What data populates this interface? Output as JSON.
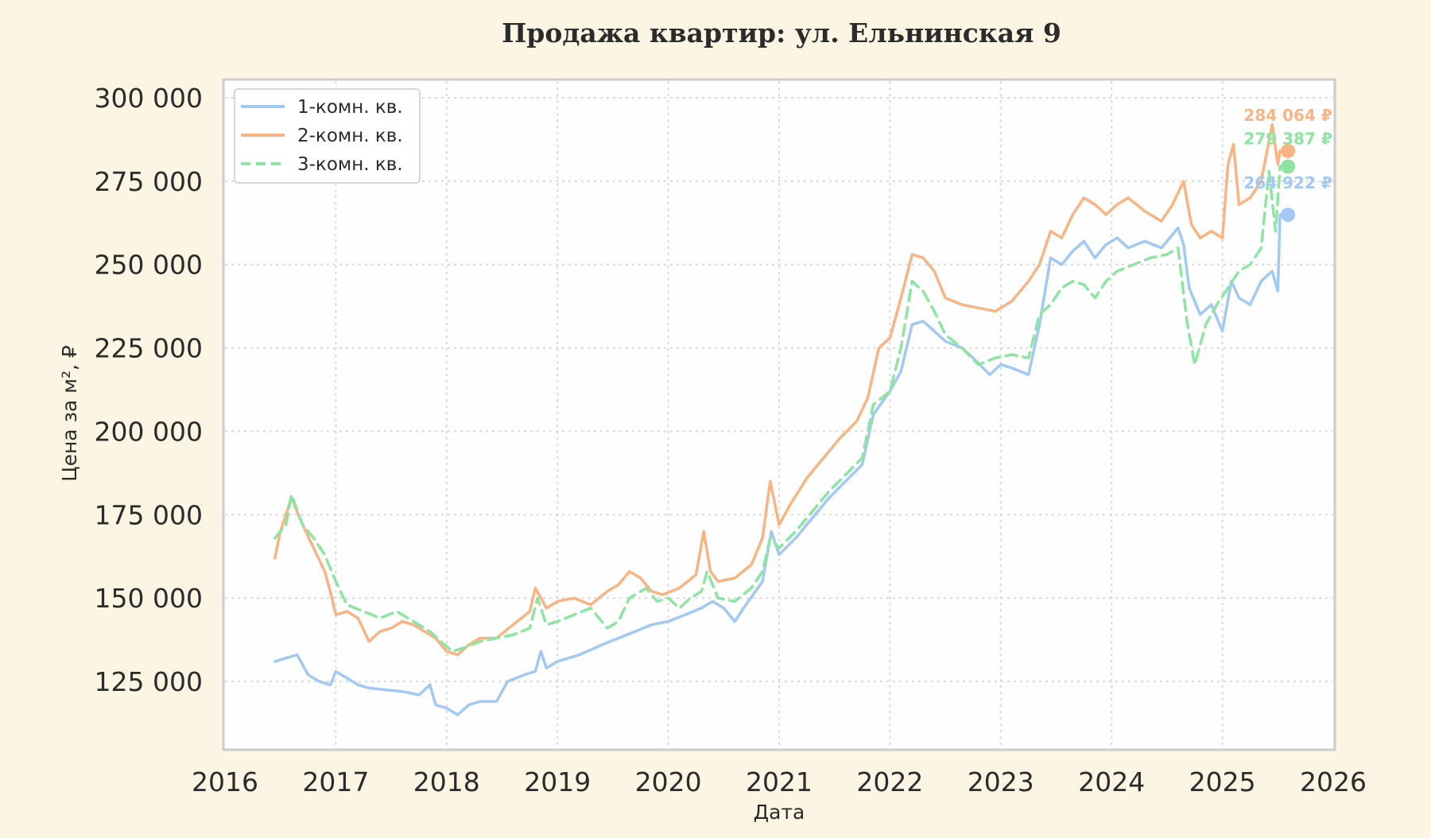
{
  "chart_data": {
    "type": "line",
    "title": "Продажа квартир: ул. Ельнинская 9",
    "xlabel": "Дата",
    "ylabel": "Цена за м², ₽",
    "xlim": [
      2016,
      2026
    ],
    "ylim": [
      105000,
      305000
    ],
    "x_ticks": [
      "2016",
      "2017",
      "2018",
      "2019",
      "2020",
      "2021",
      "2022",
      "2023",
      "2024",
      "2025",
      "2026"
    ],
    "y_ticks": [
      "125 000",
      "150 000",
      "175 000",
      "200 000",
      "225 000",
      "250 000",
      "275 000",
      "300 000"
    ],
    "y_tick_values": [
      125000,
      150000,
      175000,
      200000,
      225000,
      250000,
      275000,
      300000
    ],
    "grid": true,
    "legend_position": "top-left",
    "series": [
      {
        "name": "1-комн. кв.",
        "color": "#a1c9f4",
        "dash": "solid",
        "end_value": 264922,
        "end_label": "264 922 ₽",
        "points": [
          [
            2016.45,
            131000
          ],
          [
            2016.55,
            132000
          ],
          [
            2016.65,
            133000
          ],
          [
            2016.75,
            127000
          ],
          [
            2016.85,
            125000
          ],
          [
            2016.95,
            124000
          ],
          [
            2017.0,
            128000
          ],
          [
            2017.1,
            126000
          ],
          [
            2017.2,
            124000
          ],
          [
            2017.3,
            123000
          ],
          [
            2017.45,
            122500
          ],
          [
            2017.6,
            122000
          ],
          [
            2017.75,
            121000
          ],
          [
            2017.85,
            124000
          ],
          [
            2017.9,
            118000
          ],
          [
            2018.0,
            117000
          ],
          [
            2018.1,
            115000
          ],
          [
            2018.2,
            118000
          ],
          [
            2018.3,
            119000
          ],
          [
            2018.45,
            119000
          ],
          [
            2018.55,
            125000
          ],
          [
            2018.7,
            127000
          ],
          [
            2018.8,
            128000
          ],
          [
            2018.85,
            134000
          ],
          [
            2018.9,
            129000
          ],
          [
            2019.0,
            131000
          ],
          [
            2019.2,
            133000
          ],
          [
            2019.4,
            136000
          ],
          [
            2019.55,
            138000
          ],
          [
            2019.7,
            140000
          ],
          [
            2019.85,
            142000
          ],
          [
            2020.0,
            143000
          ],
          [
            2020.15,
            145000
          ],
          [
            2020.3,
            147000
          ],
          [
            2020.4,
            149000
          ],
          [
            2020.5,
            147000
          ],
          [
            2020.6,
            143000
          ],
          [
            2020.7,
            148000
          ],
          [
            2020.85,
            155000
          ],
          [
            2020.93,
            170000
          ],
          [
            2021.0,
            163000
          ],
          [
            2021.15,
            168000
          ],
          [
            2021.3,
            174000
          ],
          [
            2021.45,
            180000
          ],
          [
            2021.6,
            185000
          ],
          [
            2021.75,
            190000
          ],
          [
            2021.85,
            205000
          ],
          [
            2022.0,
            212000
          ],
          [
            2022.1,
            218000
          ],
          [
            2022.2,
            232000
          ],
          [
            2022.3,
            233000
          ],
          [
            2022.4,
            230000
          ],
          [
            2022.5,
            227000
          ],
          [
            2022.65,
            225000
          ],
          [
            2022.75,
            222000
          ],
          [
            2022.9,
            217000
          ],
          [
            2023.0,
            220000
          ],
          [
            2023.1,
            219000
          ],
          [
            2023.25,
            217000
          ],
          [
            2023.35,
            232000
          ],
          [
            2023.45,
            252000
          ],
          [
            2023.55,
            250000
          ],
          [
            2023.65,
            254000
          ],
          [
            2023.75,
            257000
          ],
          [
            2023.85,
            252000
          ],
          [
            2023.95,
            256000
          ],
          [
            2024.05,
            258000
          ],
          [
            2024.15,
            255000
          ],
          [
            2024.3,
            257000
          ],
          [
            2024.45,
            255000
          ],
          [
            2024.55,
            259000
          ],
          [
            2024.6,
            261000
          ],
          [
            2024.65,
            256000
          ],
          [
            2024.7,
            243000
          ],
          [
            2024.8,
            235000
          ],
          [
            2024.9,
            238000
          ],
          [
            2025.0,
            230000
          ],
          [
            2025.08,
            245000
          ],
          [
            2025.15,
            240000
          ],
          [
            2025.25,
            238000
          ],
          [
            2025.35,
            245000
          ],
          [
            2025.45,
            248000
          ],
          [
            2025.5,
            242000
          ],
          [
            2025.52,
            264922
          ]
        ]
      },
      {
        "name": "2-комн. кв.",
        "color": "#f9b483",
        "dash": "solid",
        "end_value": 284064,
        "end_label": "284 064 ₽",
        "points": [
          [
            2016.45,
            162000
          ],
          [
            2016.5,
            170000
          ],
          [
            2016.6,
            180000
          ],
          [
            2016.7,
            172000
          ],
          [
            2016.8,
            165000
          ],
          [
            2016.9,
            158000
          ],
          [
            2016.95,
            152000
          ],
          [
            2017.0,
            145000
          ],
          [
            2017.1,
            146000
          ],
          [
            2017.2,
            144000
          ],
          [
            2017.3,
            137000
          ],
          [
            2017.4,
            140000
          ],
          [
            2017.5,
            141000
          ],
          [
            2017.6,
            143000
          ],
          [
            2017.7,
            142000
          ],
          [
            2017.8,
            140000
          ],
          [
            2017.9,
            138000
          ],
          [
            2018.0,
            134000
          ],
          [
            2018.1,
            133000
          ],
          [
            2018.2,
            136000
          ],
          [
            2018.3,
            138000
          ],
          [
            2018.45,
            138000
          ],
          [
            2018.6,
            142000
          ],
          [
            2018.75,
            146000
          ],
          [
            2018.8,
            153000
          ],
          [
            2018.9,
            147000
          ],
          [
            2019.0,
            149000
          ],
          [
            2019.15,
            150000
          ],
          [
            2019.3,
            148000
          ],
          [
            2019.45,
            152000
          ],
          [
            2019.55,
            154000
          ],
          [
            2019.65,
            158000
          ],
          [
            2019.75,
            156000
          ],
          [
            2019.85,
            152000
          ],
          [
            2019.95,
            151000
          ],
          [
            2020.1,
            153000
          ],
          [
            2020.25,
            157000
          ],
          [
            2020.32,
            170000
          ],
          [
            2020.38,
            158000
          ],
          [
            2020.45,
            155000
          ],
          [
            2020.6,
            156000
          ],
          [
            2020.75,
            160000
          ],
          [
            2020.85,
            168000
          ],
          [
            2020.92,
            185000
          ],
          [
            2021.0,
            172000
          ],
          [
            2021.1,
            178000
          ],
          [
            2021.25,
            186000
          ],
          [
            2021.4,
            192000
          ],
          [
            2021.55,
            198000
          ],
          [
            2021.7,
            203000
          ],
          [
            2021.8,
            210000
          ],
          [
            2021.9,
            225000
          ],
          [
            2022.0,
            228000
          ],
          [
            2022.1,
            240000
          ],
          [
            2022.2,
            253000
          ],
          [
            2022.3,
            252000
          ],
          [
            2022.4,
            248000
          ],
          [
            2022.5,
            240000
          ],
          [
            2022.65,
            238000
          ],
          [
            2022.8,
            237000
          ],
          [
            2022.95,
            236000
          ],
          [
            2023.1,
            239000
          ],
          [
            2023.25,
            245000
          ],
          [
            2023.35,
            250000
          ],
          [
            2023.45,
            260000
          ],
          [
            2023.55,
            258000
          ],
          [
            2023.65,
            265000
          ],
          [
            2023.75,
            270000
          ],
          [
            2023.85,
            268000
          ],
          [
            2023.95,
            265000
          ],
          [
            2024.05,
            268000
          ],
          [
            2024.15,
            270000
          ],
          [
            2024.3,
            266000
          ],
          [
            2024.45,
            263000
          ],
          [
            2024.55,
            268000
          ],
          [
            2024.65,
            275000
          ],
          [
            2024.72,
            262000
          ],
          [
            2024.8,
            258000
          ],
          [
            2024.9,
            260000
          ],
          [
            2025.0,
            258000
          ],
          [
            2025.05,
            280000
          ],
          [
            2025.1,
            286000
          ],
          [
            2025.15,
            268000
          ],
          [
            2025.25,
            270000
          ],
          [
            2025.35,
            275000
          ],
          [
            2025.45,
            292000
          ],
          [
            2025.5,
            280000
          ],
          [
            2025.52,
            284064
          ]
        ]
      },
      {
        "name": "3-комн. кв.",
        "color": "#8de5a1",
        "dash": "dashed",
        "end_value": 279387,
        "end_label": "279 387 ₽",
        "points": [
          [
            2016.45,
            168000
          ],
          [
            2016.55,
            172000
          ],
          [
            2016.6,
            181000
          ],
          [
            2016.7,
            172000
          ],
          [
            2016.8,
            168000
          ],
          [
            2016.9,
            163000
          ],
          [
            2017.0,
            155000
          ],
          [
            2017.1,
            148000
          ],
          [
            2017.25,
            146000
          ],
          [
            2017.4,
            144000
          ],
          [
            2017.55,
            146000
          ],
          [
            2017.7,
            143000
          ],
          [
            2017.85,
            140000
          ],
          [
            2017.95,
            137000
          ],
          [
            2018.05,
            134000
          ],
          [
            2018.15,
            135000
          ],
          [
            2018.3,
            137000
          ],
          [
            2018.45,
            138000
          ],
          [
            2018.6,
            139000
          ],
          [
            2018.75,
            141000
          ],
          [
            2018.82,
            150000
          ],
          [
            2018.9,
            142000
          ],
          [
            2019.0,
            143000
          ],
          [
            2019.15,
            145000
          ],
          [
            2019.3,
            147000
          ],
          [
            2019.45,
            141000
          ],
          [
            2019.55,
            143000
          ],
          [
            2019.65,
            150000
          ],
          [
            2019.8,
            153000
          ],
          [
            2019.9,
            149000
          ],
          [
            2020.0,
            150000
          ],
          [
            2020.1,
            147000
          ],
          [
            2020.2,
            150000
          ],
          [
            2020.3,
            152000
          ],
          [
            2020.35,
            158000
          ],
          [
            2020.45,
            150000
          ],
          [
            2020.6,
            149000
          ],
          [
            2020.75,
            153000
          ],
          [
            2020.85,
            158000
          ],
          [
            2020.92,
            168000
          ],
          [
            2021.0,
            165000
          ],
          [
            2021.15,
            170000
          ],
          [
            2021.3,
            176000
          ],
          [
            2021.45,
            182000
          ],
          [
            2021.6,
            187000
          ],
          [
            2021.75,
            192000
          ],
          [
            2021.85,
            208000
          ],
          [
            2022.0,
            212000
          ],
          [
            2022.1,
            225000
          ],
          [
            2022.2,
            245000
          ],
          [
            2022.3,
            242000
          ],
          [
            2022.4,
            236000
          ],
          [
            2022.5,
            229000
          ],
          [
            2022.65,
            225000
          ],
          [
            2022.8,
            220000
          ],
          [
            2022.95,
            222000
          ],
          [
            2023.1,
            223000
          ],
          [
            2023.25,
            222000
          ],
          [
            2023.35,
            235000
          ],
          [
            2023.45,
            238000
          ],
          [
            2023.55,
            243000
          ],
          [
            2023.65,
            245000
          ],
          [
            2023.75,
            244000
          ],
          [
            2023.85,
            240000
          ],
          [
            2023.95,
            245000
          ],
          [
            2024.05,
            248000
          ],
          [
            2024.2,
            250000
          ],
          [
            2024.35,
            252000
          ],
          [
            2024.5,
            253000
          ],
          [
            2024.6,
            255000
          ],
          [
            2024.68,
            233000
          ],
          [
            2024.75,
            220000
          ],
          [
            2024.85,
            232000
          ],
          [
            2024.95,
            238000
          ],
          [
            2025.05,
            243000
          ],
          [
            2025.15,
            248000
          ],
          [
            2025.25,
            250000
          ],
          [
            2025.35,
            255000
          ],
          [
            2025.42,
            278000
          ],
          [
            2025.48,
            260000
          ],
          [
            2025.52,
            279387
          ]
        ]
      }
    ]
  }
}
